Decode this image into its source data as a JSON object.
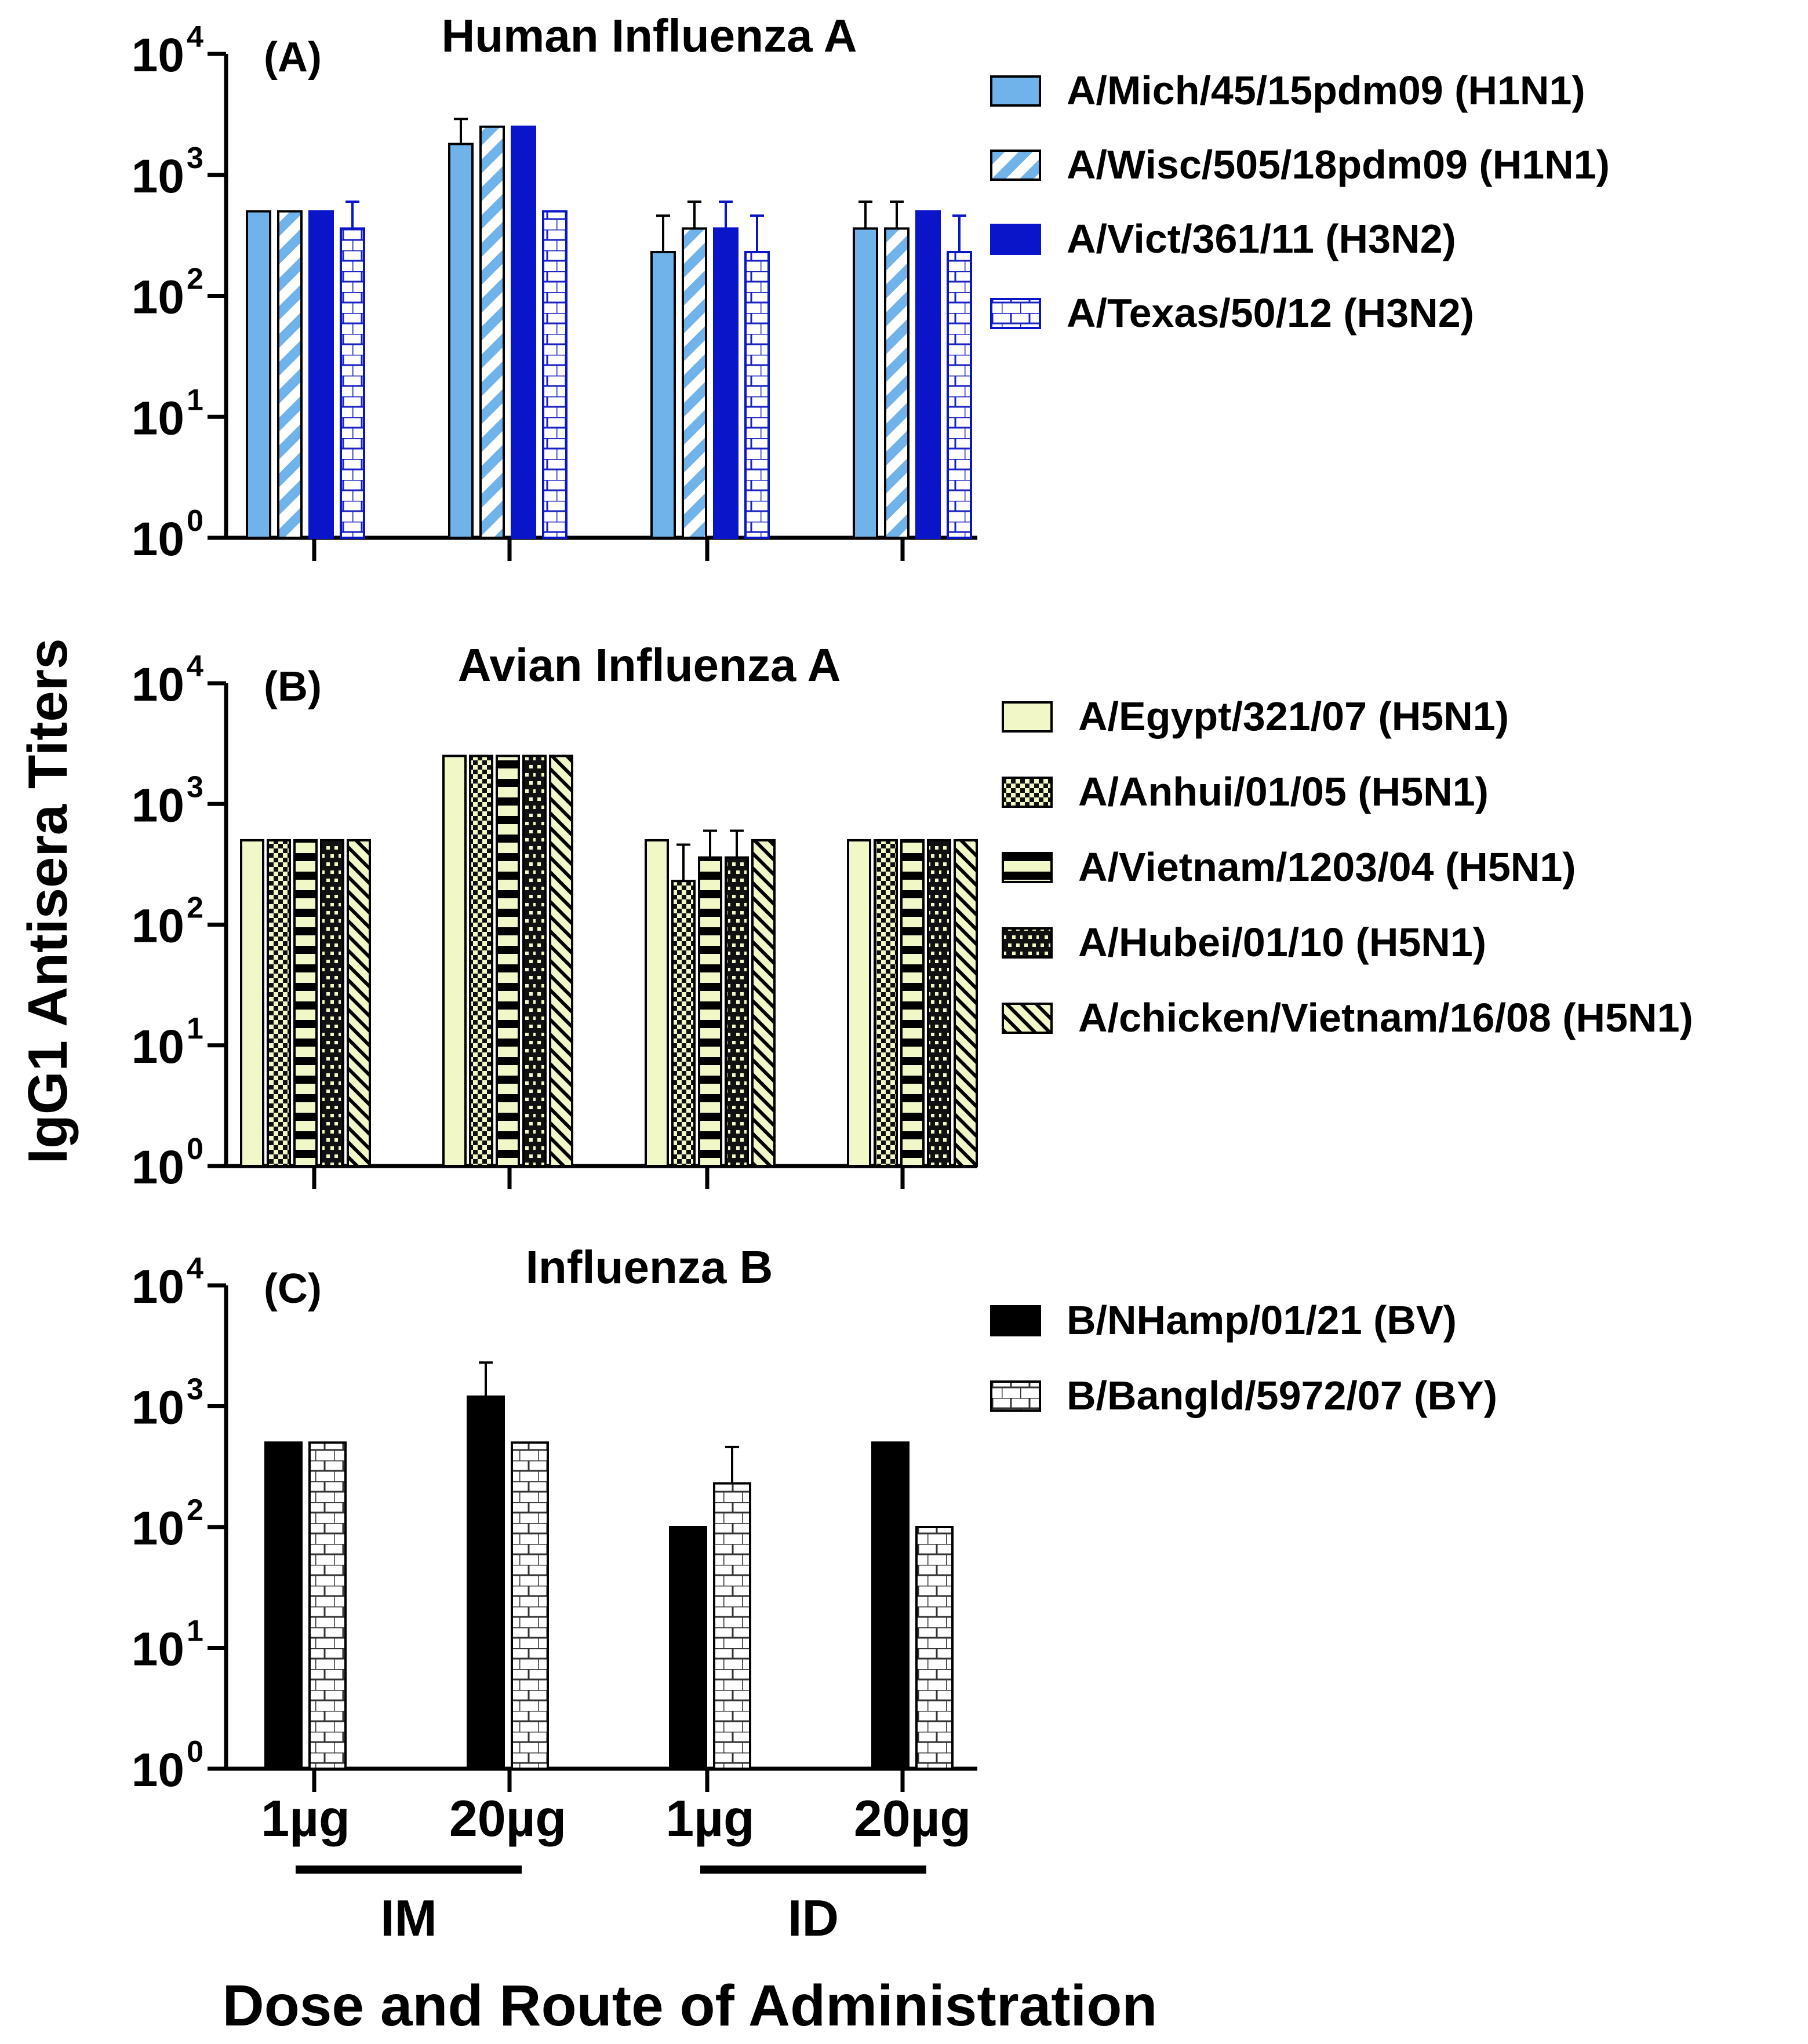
{
  "figure": {
    "y_axis_title": "IgG1 Antisera Titers",
    "x_axis_title": "Dose and Route of Administration",
    "groups": [
      {
        "label": "IM",
        "doses": [
          "1µg",
          "20µg"
        ]
      },
      {
        "label": "ID",
        "doses": [
          "1µg",
          "20µg"
        ]
      }
    ]
  },
  "chart_data": [
    {
      "type": "bar",
      "panel_label": "(A)",
      "title": "Human Influenza A",
      "ylabel": "IgG1 Antisera Titers",
      "yscale": "log",
      "ylim": [
        1,
        10000
      ],
      "yticks": [
        {
          "base": "10",
          "exp": "0"
        },
        {
          "base": "10",
          "exp": "1"
        },
        {
          "base": "10",
          "exp": "2"
        },
        {
          "base": "10",
          "exp": "3"
        },
        {
          "base": "10",
          "exp": "4"
        }
      ],
      "categories": [
        "IM 1µg",
        "IM 20µg",
        "ID 1µg",
        "ID 20µg"
      ],
      "legend_position": "right",
      "series": [
        {
          "name": "A/Mich/45/15pdm09 (H1N1)",
          "pattern": "solid",
          "color": "#6fb3ea",
          "values": [
            500,
            1800,
            230,
            360
          ],
          "errors": [
            0,
            1100,
            230,
            240
          ]
        },
        {
          "name": "A/Wisc/505/18pdm09 (H1N1)",
          "pattern": "diagonal",
          "color": "#6fb3ea",
          "values": [
            500,
            2500,
            360,
            360
          ],
          "errors": [
            0,
            0,
            240,
            240
          ]
        },
        {
          "name": "A/Vict/361/11 (H3N2)",
          "pattern": "solid",
          "color": "#0a14c8",
          "values": [
            500,
            2500,
            360,
            500
          ],
          "errors": [
            0,
            0,
            240,
            0
          ]
        },
        {
          "name": "A/Texas/50/12 (H3N2)",
          "pattern": "brick",
          "color": "#1a22c0",
          "values": [
            360,
            500,
            230,
            230
          ],
          "errors": [
            240,
            0,
            230,
            230
          ]
        }
      ]
    },
    {
      "type": "bar",
      "panel_label": "(B)",
      "title": "Avian Influenza A",
      "ylabel": "IgG1 Antisera Titers",
      "yscale": "log",
      "ylim": [
        1,
        10000
      ],
      "yticks": [
        {
          "base": "10",
          "exp": "0"
        },
        {
          "base": "10",
          "exp": "1"
        },
        {
          "base": "10",
          "exp": "2"
        },
        {
          "base": "10",
          "exp": "3"
        },
        {
          "base": "10",
          "exp": "4"
        }
      ],
      "categories": [
        "IM 1µg",
        "IM 20µg",
        "ID 1µg",
        "ID 20µg"
      ],
      "legend_position": "right",
      "series": [
        {
          "name": "A/Egypt/321/07 (H5N1)",
          "pattern": "solid",
          "color": "#f2f7c8",
          "values": [
            500,
            2500,
            500,
            500
          ],
          "errors": [
            0,
            0,
            0,
            0
          ]
        },
        {
          "name": "A/Anhui/01/05 (H5N1)",
          "pattern": "checker",
          "color": "#f2f7c8",
          "values": [
            500,
            2500,
            230,
            500
          ],
          "errors": [
            0,
            0,
            230,
            0
          ]
        },
        {
          "name": "A/Vietnam/1203/04 (H5N1)",
          "pattern": "stripes",
          "color": "#f2f7c8",
          "values": [
            500,
            2500,
            360,
            500
          ],
          "errors": [
            0,
            0,
            240,
            0
          ]
        },
        {
          "name": "A/Hubei/01/10 (H5N1)",
          "pattern": "darkbrick",
          "color": "#f2f7c8",
          "values": [
            500,
            2500,
            360,
            500
          ],
          "errors": [
            0,
            0,
            240,
            0
          ]
        },
        {
          "name": "A/chicken/Vietnam/16/08 (H5N1)",
          "pattern": "diagonal",
          "color": "#f2f7c8",
          "values": [
            500,
            2500,
            500,
            500
          ],
          "errors": [
            0,
            0,
            0,
            0
          ]
        }
      ]
    },
    {
      "type": "bar",
      "panel_label": "(C)",
      "title": "Influenza B",
      "ylabel": "IgG1 Antisera Titers",
      "yscale": "log",
      "ylim": [
        1,
        10000
      ],
      "yticks": [
        {
          "base": "10",
          "exp": "0"
        },
        {
          "base": "10",
          "exp": "1"
        },
        {
          "base": "10",
          "exp": "2"
        },
        {
          "base": "10",
          "exp": "3"
        },
        {
          "base": "10",
          "exp": "4"
        }
      ],
      "categories": [
        "IM 1µg",
        "IM 20µg",
        "ID 1µg",
        "ID 20µg"
      ],
      "legend_position": "right",
      "series": [
        {
          "name": "B/NHamp/01/21 (BV)",
          "pattern": "solid",
          "color": "#000000",
          "values": [
            500,
            1200,
            100,
            500
          ],
          "errors": [
            0,
            1100,
            0,
            0
          ]
        },
        {
          "name": "B/Bangld/5972/07 (BY)",
          "pattern": "brick",
          "color": "#333333",
          "values": [
            500,
            500,
            230,
            100
          ],
          "errors": [
            0,
            0,
            230,
            0
          ]
        }
      ]
    }
  ]
}
